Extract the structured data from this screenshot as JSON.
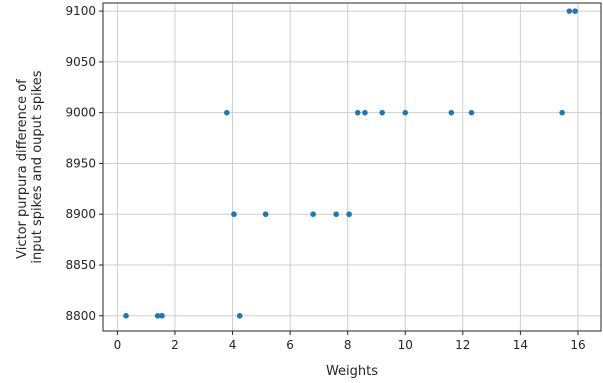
{
  "chart_data": {
    "type": "scatter",
    "xlabel": "Weights",
    "ylabel": [
      "Victor purpura difference of",
      "input spikes and ouput spikes"
    ],
    "xlim": [
      -0.5,
      16.8
    ],
    "ylim": [
      8785,
      9108
    ],
    "xticks": [
      0,
      2,
      4,
      6,
      8,
      10,
      12,
      14,
      16
    ],
    "yticks": [
      8800,
      8850,
      8900,
      8950,
      9000,
      9050,
      9100
    ],
    "grid": true,
    "marker_color": "#1f77b4",
    "points": [
      {
        "x": 0.3,
        "y": 8800
      },
      {
        "x": 1.4,
        "y": 8800
      },
      {
        "x": 1.55,
        "y": 8800
      },
      {
        "x": 4.25,
        "y": 8800
      },
      {
        "x": 4.05,
        "y": 8900
      },
      {
        "x": 5.15,
        "y": 8900
      },
      {
        "x": 6.8,
        "y": 8900
      },
      {
        "x": 7.6,
        "y": 8900
      },
      {
        "x": 8.05,
        "y": 8900
      },
      {
        "x": 3.8,
        "y": 9000
      },
      {
        "x": 8.35,
        "y": 9000
      },
      {
        "x": 8.6,
        "y": 9000
      },
      {
        "x": 9.2,
        "y": 9000
      },
      {
        "x": 10.0,
        "y": 9000
      },
      {
        "x": 11.6,
        "y": 9000
      },
      {
        "x": 12.3,
        "y": 9000
      },
      {
        "x": 15.45,
        "y": 9000
      },
      {
        "x": 15.7,
        "y": 9100
      },
      {
        "x": 15.9,
        "y": 9100
      }
    ]
  }
}
